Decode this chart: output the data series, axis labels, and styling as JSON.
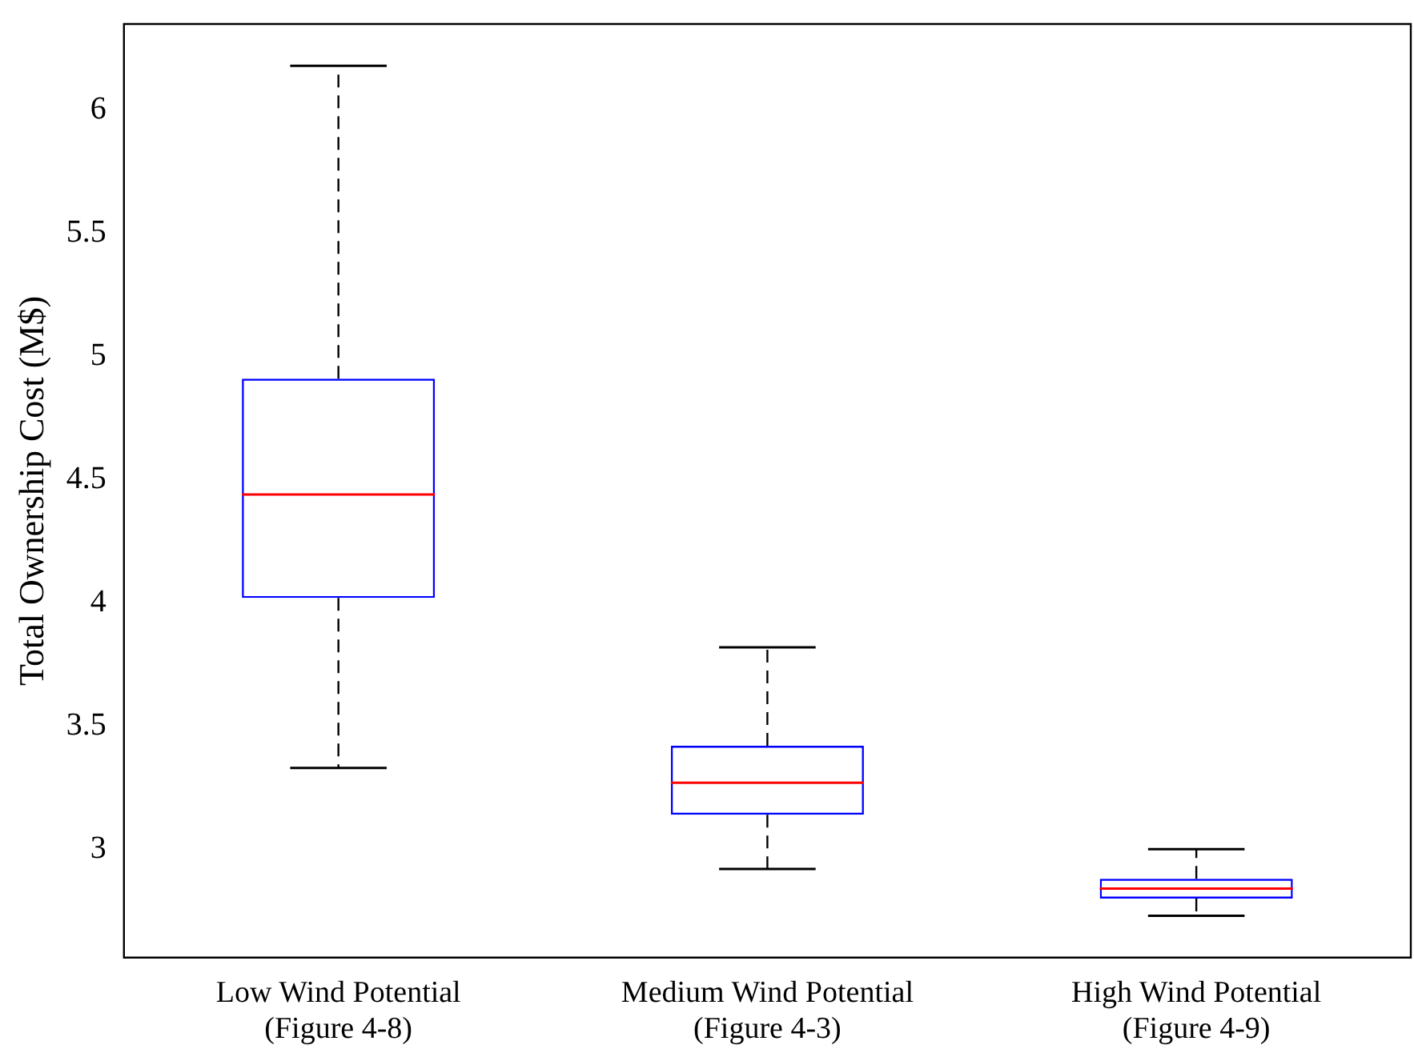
{
  "chart_data": {
    "type": "box",
    "ylabel": "Total Ownership Cost (M$)",
    "categories": [
      "Low Wind Potential\n(Figure 4-8)",
      "Medium Wind Potential\n(Figure 4-3)",
      "High Wind Potential\n(Figure 4-9)"
    ],
    "ylim": [
      2.56,
      6.35
    ],
    "yticks": [
      3,
      3.5,
      4,
      4.5,
      5,
      5.5,
      6
    ],
    "grid": false,
    "legend": false,
    "series": [
      {
        "color": "#0000ff",
        "boxes": [
          {
            "low": 3.33,
            "q1": 4.02,
            "median": 4.44,
            "q3": 4.91,
            "high": 6.18
          },
          {
            "low": 2.92,
            "q1": 3.14,
            "median": 3.27,
            "q3": 3.42,
            "high": 3.82
          },
          {
            "low": 2.73,
            "q1": 2.8,
            "median": 2.84,
            "q3": 2.88,
            "high": 3.0
          }
        ]
      }
    ]
  }
}
